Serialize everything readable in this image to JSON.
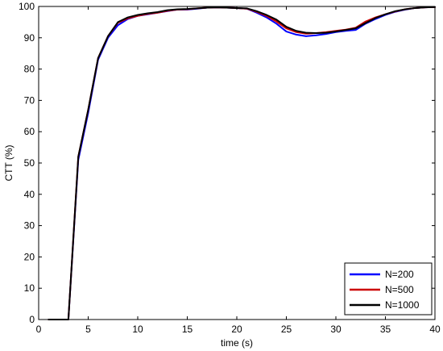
{
  "chart_data": {
    "type": "line",
    "title": "",
    "xlabel": "time (s)",
    "ylabel": "CTT (%)",
    "xlim": [
      0,
      40
    ],
    "ylim": [
      0,
      100
    ],
    "xticks": [
      0,
      5,
      10,
      15,
      20,
      25,
      30,
      35,
      40
    ],
    "yticks": [
      0,
      10,
      20,
      30,
      40,
      50,
      60,
      70,
      80,
      90,
      100
    ],
    "grid": false,
    "legend_position": "bottom-right",
    "series": [
      {
        "name": "N=200",
        "color": "#0000ff",
        "x": [
          1,
          2,
          3,
          4,
          5,
          6,
          7,
          8,
          9,
          10,
          11,
          12,
          13,
          14,
          15,
          16,
          17,
          18,
          19,
          20,
          21,
          22,
          23,
          24,
          25,
          26,
          27,
          28,
          29,
          30,
          31,
          32,
          33,
          34,
          35,
          36,
          37,
          38,
          39,
          40
        ],
        "y": [
          0,
          0,
          0,
          51,
          66,
          83,
          90,
          94,
          96,
          97,
          97.5,
          98,
          98.5,
          99,
          99,
          99.3,
          99.6,
          99.7,
          99.6,
          99.5,
          99.3,
          98,
          96.5,
          94.5,
          92,
          91,
          90.5,
          90.8,
          91.2,
          91.8,
          92.2,
          92.5,
          94.5,
          96,
          97.3,
          98.3,
          99,
          99.5,
          99.7,
          99.8
        ]
      },
      {
        "name": "N=500",
        "color": "#cc0000",
        "x": [
          1,
          2,
          3,
          4,
          5,
          6,
          7,
          8,
          9,
          10,
          11,
          12,
          13,
          14,
          15,
          16,
          17,
          18,
          19,
          20,
          21,
          22,
          23,
          24,
          25,
          26,
          27,
          28,
          29,
          30,
          31,
          32,
          33,
          34,
          35,
          36,
          37,
          38,
          39,
          40
        ],
        "y": [
          0,
          0,
          0,
          52,
          67,
          83.5,
          90.5,
          94.8,
          96.2,
          97,
          97.6,
          98,
          98.6,
          99,
          99.1,
          99.4,
          99.6,
          99.7,
          99.6,
          99.5,
          99.3,
          98.3,
          97,
          95.2,
          93,
          91.8,
          91.3,
          91.5,
          91.8,
          92.2,
          92.6,
          93.2,
          95.2,
          96.5,
          97.5,
          98.4,
          99.1,
          99.5,
          99.7,
          99.8
        ]
      },
      {
        "name": "N=1000",
        "color": "#000000",
        "x": [
          1,
          2,
          3,
          4,
          5,
          6,
          7,
          8,
          9,
          10,
          11,
          12,
          13,
          14,
          15,
          16,
          17,
          18,
          19,
          20,
          21,
          22,
          23,
          24,
          25,
          26,
          27,
          28,
          29,
          30,
          31,
          32,
          33,
          34,
          35,
          36,
          37,
          38,
          39,
          40
        ],
        "y": [
          0,
          0,
          0,
          52,
          67,
          83.5,
          90.5,
          95,
          96.5,
          97.3,
          97.8,
          98.2,
          98.8,
          99.1,
          99.2,
          99.4,
          99.6,
          99.7,
          99.6,
          99.5,
          99.4,
          98.5,
          97.3,
          95.8,
          93.5,
          92.2,
          91.6,
          91.5,
          91.6,
          92,
          92.5,
          93,
          94.7,
          96.3,
          97.5,
          98.5,
          99.1,
          99.5,
          99.7,
          99.8
        ]
      }
    ]
  }
}
